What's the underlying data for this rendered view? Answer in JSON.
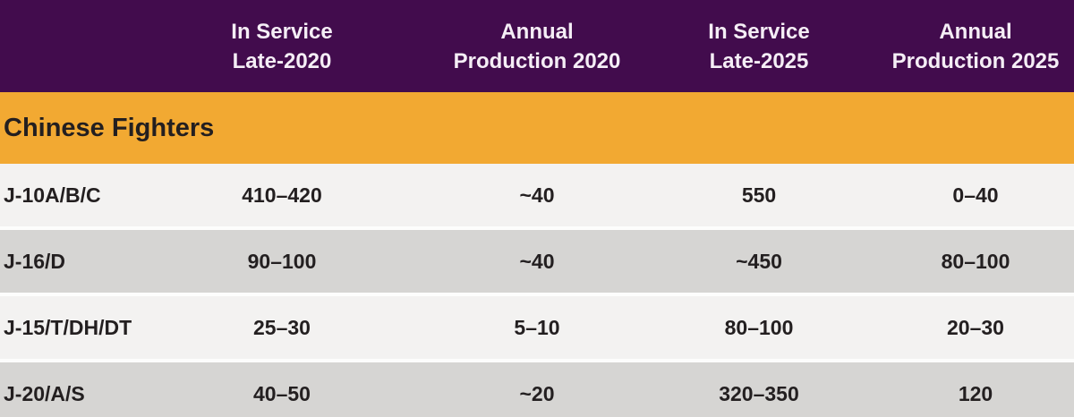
{
  "colors": {
    "purple": "#420C4D",
    "orange": "#F2A932",
    "row_light": "#F3F2F1",
    "row_dark": "#D6D5D3",
    "header_text": "#F5EEF6",
    "body_text": "#231F20",
    "separator": "#FDFDFC"
  },
  "table": {
    "section_title": "Chinese Fighters",
    "headers": [
      {
        "line1": "In Service",
        "line2": "Late-2020"
      },
      {
        "line1": "Annual",
        "line2": "Production 2020"
      },
      {
        "line1": "In Service",
        "line2": "Late-2025"
      },
      {
        "line1": "Annual",
        "line2": "Production 2025"
      }
    ],
    "rows": [
      {
        "name": "J-10A/B/C",
        "values": [
          "410–420",
          "~40",
          "550",
          "0–40"
        ]
      },
      {
        "name": "J-16/D",
        "values": [
          "90–100",
          "~40",
          "~450",
          "80–100"
        ]
      },
      {
        "name": "J-15/T/DH/DT",
        "values": [
          "25–30",
          "5–10",
          "80–100",
          "20–30"
        ]
      },
      {
        "name": "J-20/A/S",
        "values": [
          "40–50",
          "~20",
          "320–350",
          "120"
        ]
      }
    ]
  },
  "chart_data": {
    "type": "table",
    "title": "Chinese Fighters",
    "columns": [
      "",
      "In Service Late-2020",
      "Annual Production 2020",
      "In Service Late-2025",
      "Annual Production 2025"
    ],
    "rows": [
      [
        "J-10A/B/C",
        "410–420",
        "~40",
        "550",
        "0–40"
      ],
      [
        "J-16/D",
        "90–100",
        "~40",
        "~450",
        "80–100"
      ],
      [
        "J-15/T/DH/DT",
        "25–30",
        "5–10",
        "80–100",
        "20–30"
      ],
      [
        "J-20/A/S",
        "40–50",
        "~20",
        "320–350",
        "120"
      ]
    ],
    "layout": {
      "header_background": "#420C4D",
      "section_background": "#F2A932",
      "alternating_row_backgrounds": [
        "#F3F2F1",
        "#D6D5D3"
      ],
      "value_alignment": "center",
      "name_alignment": "left"
    }
  }
}
